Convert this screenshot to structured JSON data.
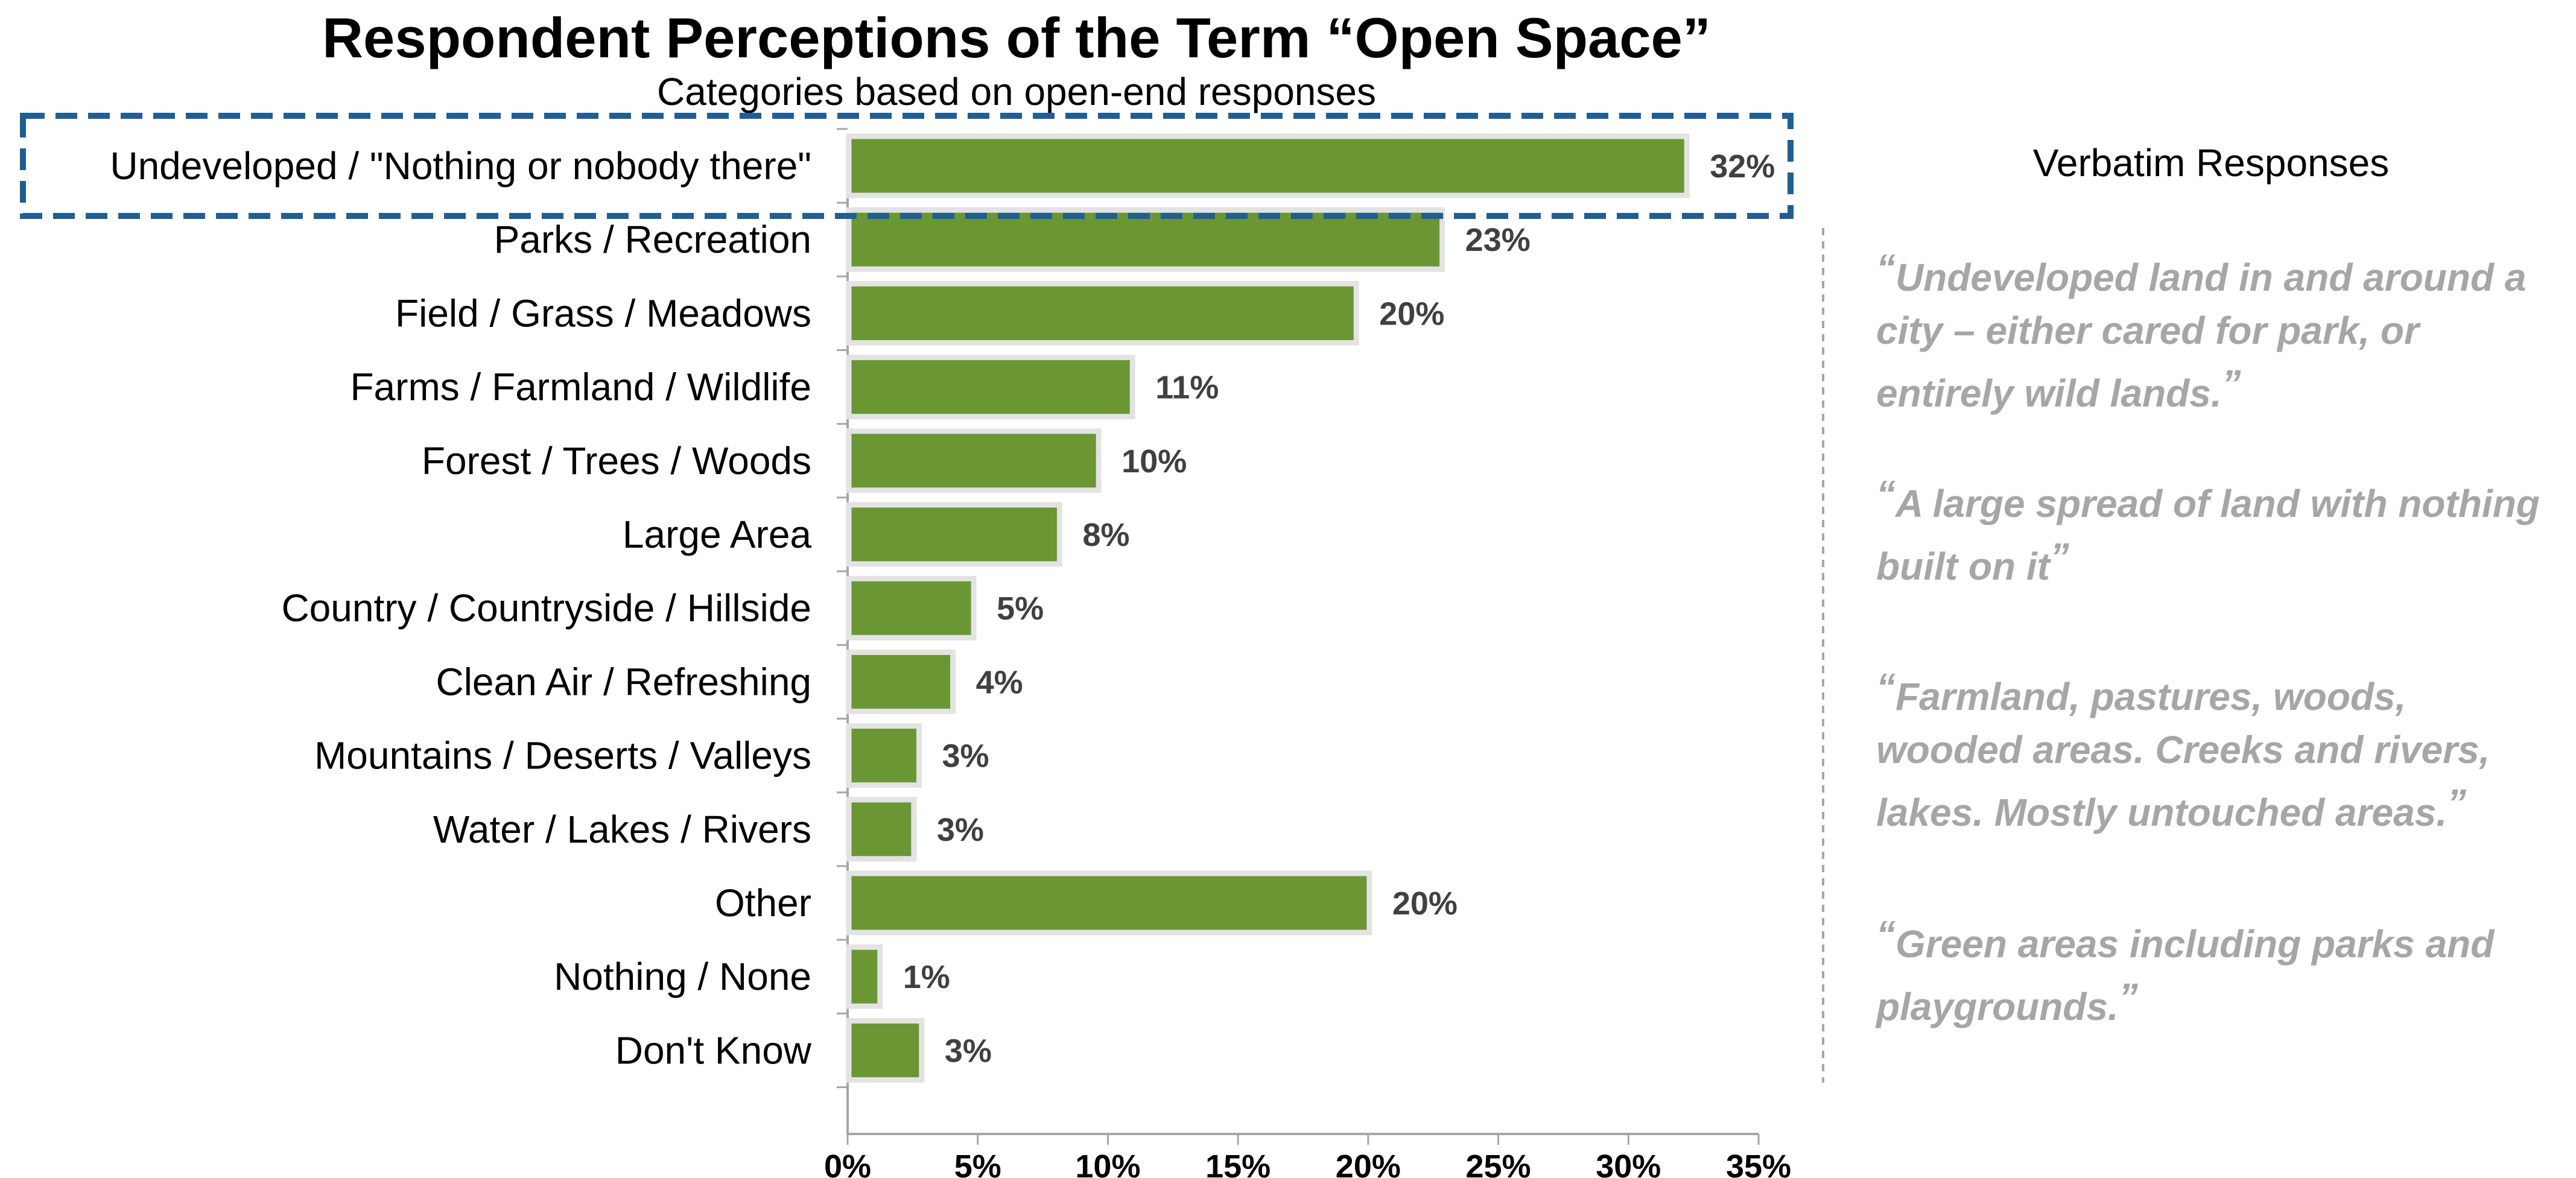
{
  "chart_data": {
    "type": "bar",
    "orientation": "horizontal",
    "title": "Respondent Perceptions of the Term “Open Space”",
    "subtitle": "Categories based on open-end responses",
    "categories": [
      "Undeveloped / \"Nothing or nobody there\"",
      "Parks / Recreation",
      "Field / Grass / Meadows",
      "Farms / Farmland / Wildlife",
      "Forest / Trees / Woods",
      "Large Area",
      "Country / Countryside / Hillside",
      "Clean Air / Refreshing",
      "Mountains / Deserts / Valleys",
      "Water / Lakes / Rivers",
      "Other",
      "Nothing / None",
      "Don't Know"
    ],
    "values": [
      32.2,
      22.8,
      19.5,
      10.9,
      9.6,
      8.1,
      4.8,
      4.0,
      2.7,
      2.5,
      20.0,
      1.2,
      2.8
    ],
    "value_labels": [
      "32%",
      "23%",
      "20%",
      "11%",
      "10%",
      "8%",
      "5%",
      "4%",
      "3%",
      "3%",
      "20%",
      "1%",
      "3%"
    ],
    "xlim": [
      0,
      35
    ],
    "x_ticks": [
      0,
      5,
      10,
      15,
      20,
      25,
      30,
      35
    ],
    "x_tick_labels": [
      "0%",
      "5%",
      "10%",
      "15%",
      "20%",
      "25%",
      "30%",
      "35%"
    ],
    "xlabel": "",
    "ylabel": "",
    "highlighted_category": "Undeveloped / \"Nothing or nobody there\"",
    "grid": false,
    "colors": {
      "bar_fill": "#6a9633",
      "bar_outline": "#e3e3e3",
      "highlight_box": "#1f5f94",
      "axis": "#a6a6a6",
      "divider": "#a6a6a6",
      "quote_text": "#a6a6a6"
    }
  },
  "verbatims": {
    "header": "Verbatim Responses",
    "quotes": [
      "Undeveloped land in and around a city – either cared for park, or entirely wild lands.",
      "A large spread of land with nothing built on it",
      "Farmland, pastures, woods, wooded areas. Creeks and rivers, lakes. Mostly untouched areas.",
      "Green areas including parks and playgrounds."
    ]
  }
}
